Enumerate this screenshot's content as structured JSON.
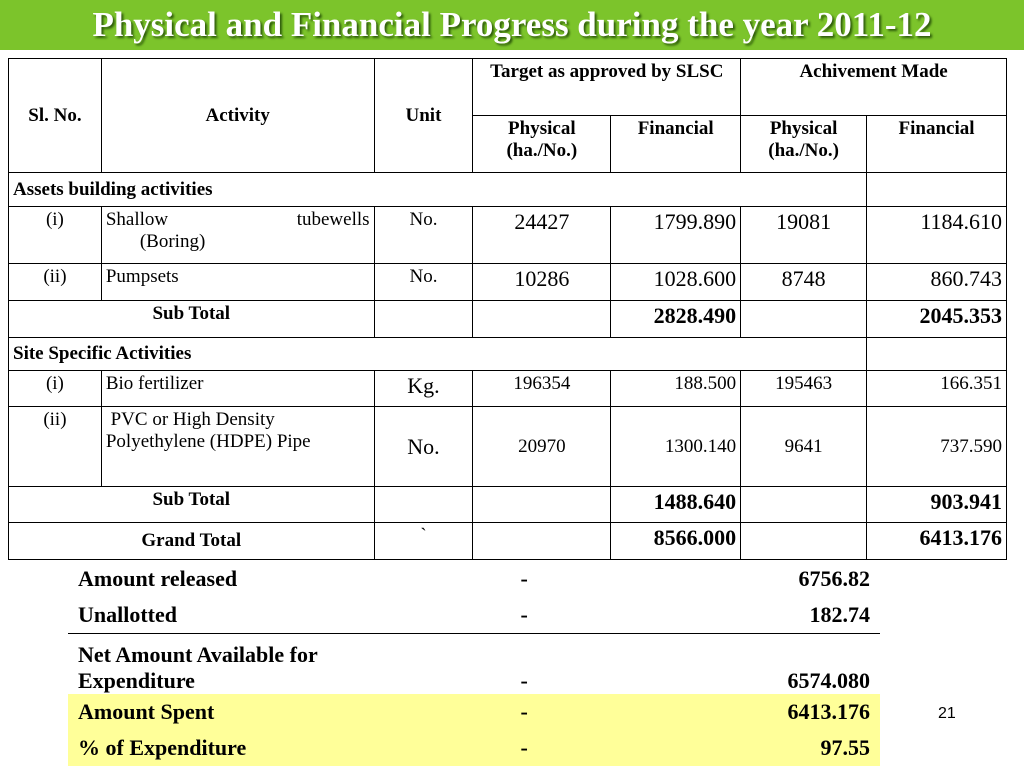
{
  "title": "Physical and Financial Progress during the year 2011-12",
  "headers": {
    "sl_no": "Sl. No.",
    "activity": "Activity",
    "unit": "Unit",
    "target": "Target as approved by SLSC",
    "achievement": "Achivement Made",
    "physical": "Physical (ha./No.)",
    "financial": "Financial"
  },
  "sections": [
    {
      "name": "Assets building activities",
      "rows": [
        {
          "sl": "(i)",
          "activity_a": "Shallow",
          "activity_b": "tubewells",
          "activity_c": "(Boring)",
          "unit": "No.",
          "target_physical": "24427",
          "target_financial": "1799.890",
          "ach_physical": "19081",
          "ach_financial": "1184.610"
        },
        {
          "sl": "(ii)",
          "activity": "Pumpsets",
          "unit": "No.",
          "target_physical": "10286",
          "target_financial": "1028.600",
          "ach_physical": "8748",
          "ach_financial": "860.743"
        }
      ],
      "subtotal": {
        "label": "Sub Total",
        "target_financial": "2828.490",
        "ach_financial": "2045.353"
      }
    },
    {
      "name": "Site Specific Activities",
      "rows": [
        {
          "sl": "(i)",
          "activity": "Bio fertilizer",
          "unit": "Kg.",
          "target_physical": "196354",
          "target_financial": "188.500",
          "ach_physical": "195463",
          "ach_financial": "166.351"
        },
        {
          "sl": "(ii)",
          "activity": " PVC or High Density Polyethylene (HDPE) Pipe",
          "unit": "No.",
          "target_physical": "20970",
          "target_financial": "1300.140",
          "ach_physical": "9641",
          "ach_financial": "737.590"
        }
      ],
      "subtotal": {
        "label": "Sub Total",
        "target_financial": "1488.640",
        "ach_financial": "903.941"
      }
    }
  ],
  "grand_total": {
    "label": "Grand Total",
    "unit_mark": "`",
    "target_financial": "8566.000",
    "ach_financial": "6413.176"
  },
  "summary": [
    {
      "label": "Amount released",
      "dash": "-",
      "value": "6756.82"
    },
    {
      "label": "Unallotted",
      "dash": "-",
      "value": "182.74"
    },
    {
      "label": "Net Amount Available for Expenditure",
      "dash": "-",
      "value": "6574.080"
    },
    {
      "label": "Amount Spent",
      "dash": "-",
      "value": "6413.176"
    },
    {
      "label": "% of Expenditure",
      "dash": "-",
      "value": "97.55"
    }
  ],
  "page_number": "21",
  "colors": {
    "title_bar": "#7cc42b",
    "highlight": "#ffff99"
  }
}
